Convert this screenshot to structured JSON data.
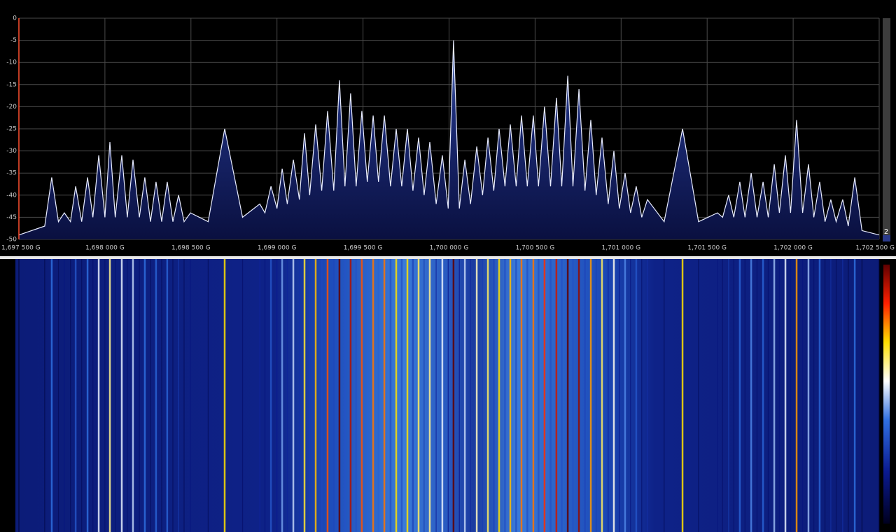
{
  "chart_data": {
    "type": "line",
    "xlim": [
      1697.5,
      1702.5
    ],
    "xticks": [
      {
        "value": 1697.5,
        "label": "1,697 500 G"
      },
      {
        "value": 1698.0,
        "label": "1,698 000 G"
      },
      {
        "value": 1698.5,
        "label": "1,698 500 G"
      },
      {
        "value": 1699.0,
        "label": "1,699 000 G"
      },
      {
        "value": 1699.5,
        "label": "1,699 500 G"
      },
      {
        "value": 1700.0,
        "label": "1,700 000 G"
      },
      {
        "value": 1700.5,
        "label": "1,700 500 G"
      },
      {
        "value": 1701.0,
        "label": "1,701 000 G"
      },
      {
        "value": 1701.5,
        "label": "1,701 500 G"
      },
      {
        "value": 1702.0,
        "label": "1,702 000 G"
      },
      {
        "value": 1702.5,
        "label": "1,702 500 G"
      }
    ],
    "ylim": [
      -50,
      0
    ],
    "yticks": [
      0,
      -5,
      -10,
      -15,
      -20,
      -25,
      -30,
      -35,
      -40,
      -45,
      -50
    ],
    "grid": true,
    "series": [
      {
        "color": "#e8ecff",
        "x": [
          1697.5,
          1697.65,
          1697.691,
          1697.73,
          1697.764,
          1697.8,
          1697.83,
          1697.865,
          1697.899,
          1697.93,
          1697.964,
          1698.0,
          1698.029,
          1698.06,
          1698.098,
          1698.13,
          1698.163,
          1698.2,
          1698.232,
          1698.265,
          1698.297,
          1698.33,
          1698.362,
          1698.395,
          1698.428,
          1698.46,
          1698.497,
          1698.6,
          1698.696,
          1698.8,
          1698.9,
          1698.93,
          1698.965,
          1699.0,
          1699.03,
          1699.06,
          1699.095,
          1699.13,
          1699.16,
          1699.19,
          1699.225,
          1699.26,
          1699.294,
          1699.33,
          1699.363,
          1699.395,
          1699.428,
          1699.46,
          1699.493,
          1699.525,
          1699.559,
          1699.59,
          1699.624,
          1699.66,
          1699.693,
          1699.725,
          1699.758,
          1699.79,
          1699.823,
          1699.855,
          1699.888,
          1699.925,
          1699.961,
          1699.995,
          1700.026,
          1700.06,
          1700.092,
          1700.125,
          1700.161,
          1700.195,
          1700.226,
          1700.26,
          1700.291,
          1700.325,
          1700.356,
          1700.39,
          1700.421,
          1700.455,
          1700.49,
          1700.52,
          1700.555,
          1700.59,
          1700.624,
          1700.655,
          1700.69,
          1700.72,
          1700.755,
          1700.79,
          1700.824,
          1700.855,
          1700.889,
          1700.925,
          1700.958,
          1700.99,
          1701.023,
          1701.055,
          1701.088,
          1701.12,
          1701.153,
          1701.25,
          1701.357,
          1701.45,
          1701.56,
          1701.59,
          1701.625,
          1701.655,
          1701.69,
          1701.72,
          1701.756,
          1701.79,
          1701.825,
          1701.855,
          1701.89,
          1701.92,
          1701.955,
          1701.985,
          1702.02,
          1702.055,
          1702.089,
          1702.12,
          1702.154,
          1702.185,
          1702.219,
          1702.25,
          1702.288,
          1702.32,
          1702.358,
          1702.4,
          1702.5
        ],
        "values": [
          -49,
          -47,
          -36,
          -46,
          -44,
          -46,
          -38,
          -46,
          -36,
          -45,
          -31,
          -45,
          -28,
          -45,
          -31,
          -45,
          -32,
          -45,
          -36,
          -46,
          -37,
          -46,
          -37,
          -46,
          -40,
          -46,
          -44,
          -46,
          -25,
          -45,
          -42,
          -44,
          -38,
          -43,
          -34,
          -42,
          -32,
          -41,
          -26,
          -40,
          -24,
          -39,
          -21,
          -39,
          -14,
          -38,
          -17,
          -38,
          -21,
          -37,
          -22,
          -37,
          -22,
          -38,
          -25,
          -38,
          -25,
          -39,
          -27,
          -40,
          -28,
          -42,
          -31,
          -43,
          -5,
          -43,
          -32,
          -42,
          -29,
          -40,
          -27,
          -39,
          -25,
          -38,
          -24,
          -38,
          -22,
          -38,
          -22,
          -38,
          -20,
          -38,
          -18,
          -38,
          -13,
          -38,
          -16,
          -39,
          -23,
          -40,
          -27,
          -42,
          -30,
          -43,
          -35,
          -44,
          -38,
          -45,
          -41,
          -46,
          -25,
          -46,
          -44,
          -45,
          -40,
          -45,
          -37,
          -45,
          -35,
          -45,
          -37,
          -45,
          -33,
          -44,
          -31,
          -44,
          -23,
          -44,
          -33,
          -45,
          -37,
          -46,
          -41,
          -46,
          -41,
          -47,
          -36,
          -48,
          -49
        ]
      }
    ]
  },
  "ui": {
    "scrollbar_label": "2"
  }
}
